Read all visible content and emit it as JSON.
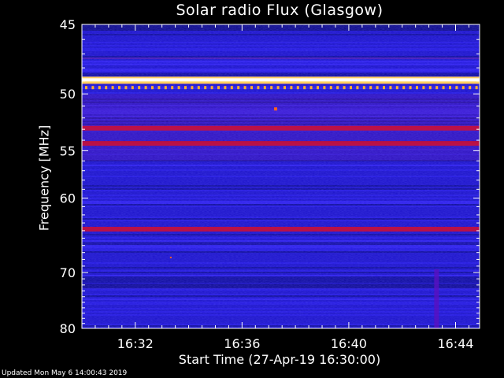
{
  "chart_data": {
    "type": "heatmap",
    "title": "Solar radio Flux (Glasgow)",
    "xlabel": "Start Time (27-Apr-19 16:30:00)",
    "ylabel": "Frequency [MHz]",
    "x_ticks": [
      "16:32",
      "16:36",
      "16:40",
      "16:44"
    ],
    "x_tick_minutes": [
      2,
      6,
      10,
      14
    ],
    "xlim_minutes": [
      0,
      14.9
    ],
    "y_ticks": [
      45,
      50,
      55,
      60,
      70,
      80
    ],
    "ylim_mhz": [
      45,
      80
    ],
    "y_scale": "reciprocal",
    "bright_bands_mhz": [
      {
        "freq": 48.9,
        "level": "white"
      },
      {
        "freq": 49.5,
        "level": "yellow-dotted"
      },
      {
        "freq": 52.9,
        "level": "red"
      },
      {
        "freq": 54.3,
        "level": "red"
      },
      {
        "freq": 63.8,
        "level": "red"
      }
    ],
    "colormap": [
      "#000000",
      "#000080",
      "#0000ff",
      "#8000a0",
      "#ff0000",
      "#ffff00",
      "#ffffff"
    ]
  },
  "footer": "Updated Mon May  6 14:00:43 2019"
}
